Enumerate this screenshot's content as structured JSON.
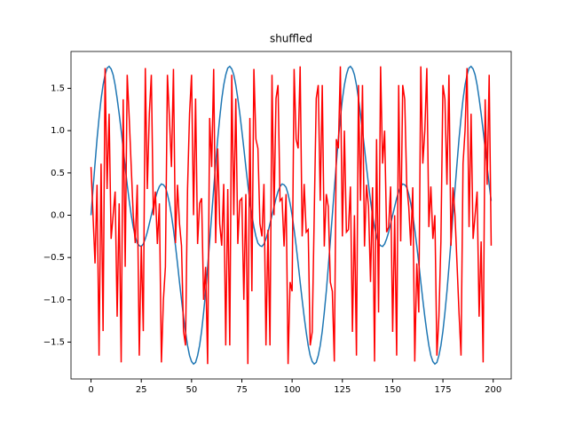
{
  "chart_data": {
    "type": "line",
    "title": "shuffled",
    "x": [
      0,
      1,
      2,
      3,
      4,
      5,
      6,
      7,
      8,
      9,
      10,
      11,
      12,
      13,
      14,
      15,
      16,
      17,
      18,
      19,
      20,
      21,
      22,
      23,
      24,
      25,
      26,
      27,
      28,
      29,
      30,
      31,
      32,
      33,
      34,
      35,
      36,
      37,
      38,
      39,
      40,
      41,
      42,
      43,
      44,
      45,
      46,
      47,
      48,
      49,
      50,
      51,
      52,
      53,
      54,
      55,
      56,
      57,
      58,
      59,
      60,
      61,
      62,
      63,
      64,
      65,
      66,
      67,
      68,
      69,
      70,
      71,
      72,
      73,
      74,
      75,
      76,
      77,
      78,
      79,
      80,
      81,
      82,
      83,
      84,
      85,
      86,
      87,
      88,
      89,
      90,
      91,
      92,
      93,
      94,
      95,
      96,
      97,
      98,
      99,
      100,
      101,
      102,
      103,
      104,
      105,
      106,
      107,
      108,
      109,
      110,
      111,
      112,
      113,
      114,
      115,
      116,
      117,
      118,
      119,
      120,
      121,
      122,
      123,
      124,
      125,
      126,
      127,
      128,
      129,
      130,
      131,
      132,
      133,
      134,
      135,
      136,
      137,
      138,
      139,
      140,
      141,
      142,
      143,
      144,
      145,
      146,
      147,
      148,
      149,
      150,
      151,
      152,
      153,
      154,
      155,
      156,
      157,
      158,
      159,
      160,
      161,
      162,
      163,
      164,
      165,
      166,
      167,
      168,
      169,
      170,
      171,
      172,
      173,
      174,
      175,
      176,
      177,
      178,
      179,
      180,
      181,
      182,
      183,
      184,
      185,
      186,
      187,
      188,
      189,
      190,
      191,
      192,
      193,
      194,
      195,
      196,
      197,
      198,
      199
    ],
    "series": [
      {
        "color": "#1f77b4",
        "values": [
          0,
          0.31,
          0.61,
          0.9,
          1.15,
          1.37,
          1.54,
          1.66,
          1.74,
          1.76,
          1.73,
          1.66,
          1.54,
          1.38,
          1.2,
          1,
          0.79,
          0.57,
          0.36,
          0.17,
          0,
          -0.14,
          -0.25,
          -0.33,
          -0.36,
          -0.37,
          -0.34,
          -0.28,
          -0.2,
          -0.1,
          0,
          0.1,
          0.2,
          0.28,
          0.34,
          0.37,
          0.36,
          0.33,
          0.25,
          0.14,
          0,
          -0.17,
          -0.36,
          -0.57,
          -0.79,
          -1,
          -1.2,
          -1.38,
          -1.54,
          -1.66,
          -1.73,
          -1.76,
          -1.74,
          -1.66,
          -1.54,
          -1.37,
          -1.15,
          -0.9,
          -0.61,
          -0.31,
          0,
          0.31,
          0.61,
          0.9,
          1.15,
          1.37,
          1.54,
          1.66,
          1.74,
          1.76,
          1.73,
          1.66,
          1.54,
          1.38,
          1.2,
          1,
          0.79,
          0.57,
          0.36,
          0.17,
          0,
          -0.14,
          -0.25,
          -0.33,
          -0.36,
          -0.37,
          -0.34,
          -0.28,
          -0.2,
          -0.1,
          0,
          0.1,
          0.2,
          0.28,
          0.34,
          0.37,
          0.36,
          0.33,
          0.25,
          0.14,
          0,
          -0.17,
          -0.36,
          -0.57,
          -0.79,
          -1,
          -1.2,
          -1.38,
          -1.54,
          -1.66,
          -1.73,
          -1.76,
          -1.74,
          -1.66,
          -1.54,
          -1.37,
          -1.15,
          -0.9,
          -0.61,
          -0.31,
          0,
          0.31,
          0.61,
          0.9,
          1.15,
          1.37,
          1.54,
          1.66,
          1.74,
          1.76,
          1.73,
          1.66,
          1.54,
          1.38,
          1.2,
          1,
          0.79,
          0.57,
          0.36,
          0.17,
          0,
          -0.14,
          -0.25,
          -0.33,
          -0.36,
          -0.37,
          -0.34,
          -0.28,
          -0.2,
          -0.1,
          0,
          0.1,
          0.2,
          0.28,
          0.34,
          0.37,
          0.36,
          0.33,
          0.25,
          0.14,
          0,
          -0.17,
          -0.36,
          -0.57,
          -0.79,
          -1,
          -1.2,
          -1.38,
          -1.54,
          -1.66,
          -1.73,
          -1.76,
          -1.74,
          -1.66,
          -1.54,
          -1.37,
          -1.15,
          -0.9,
          -0.61,
          -0.31,
          0,
          0.31,
          0.61,
          0.9,
          1.15,
          1.37,
          1.54,
          1.66,
          1.74,
          1.76,
          1.73,
          1.66,
          1.54,
          1.38,
          1.2,
          1,
          0.79,
          0.57,
          0.36,
          0.17
        ]
      },
      {
        "color": "#ff0000",
        "values": [
          0.57,
          0,
          -0.57,
          0.36,
          -1.66,
          0.61,
          -1.37,
          1.74,
          0.31,
          1.2,
          -0.28,
          0,
          0.28,
          -1.2,
          0.14,
          -1.74,
          1.37,
          -0.61,
          1.66,
          1.15,
          0.57,
          0,
          -0.33,
          0.36,
          -1.66,
          -0.36,
          -1.37,
          1.74,
          0.31,
          1.2,
          1.66,
          0,
          0.28,
          -0.34,
          0.14,
          -1.74,
          -1,
          -0.61,
          1.66,
          1.15,
          0.57,
          1.73,
          -0.33,
          0.36,
          -0.1,
          -0.36,
          -1.37,
          -1.54,
          0.31,
          1.2,
          1.66,
          0,
          1.38,
          -0.34,
          0.14,
          0.2,
          -1,
          -0.61,
          -1.76,
          1.15,
          0.57,
          1.73,
          -0.33,
          0.79,
          -0.1,
          -0.36,
          0.37,
          -1.54,
          0.31,
          -1.54,
          1.66,
          0,
          1.38,
          -0.34,
          0.17,
          0.2,
          -1,
          0.25,
          -1.76,
          1.15,
          -0.9,
          1.73,
          0.9,
          0.79,
          -0.1,
          -0.25,
          0.37,
          -1.54,
          -0.17,
          -1.54,
          1.66,
          0,
          1.38,
          1.54,
          0.17,
          0.2,
          -0.37,
          0.25,
          -1.76,
          -0.79,
          -0.9,
          1.73,
          0.9,
          0.79,
          1.76,
          -0.25,
          0.37,
          -0.2,
          -0.17,
          -1.54,
          -1.38,
          0,
          1.38,
          1.54,
          0.17,
          1.54,
          -0.37,
          0.25,
          0.1,
          -0.79,
          -0.9,
          -1.73,
          0.9,
          0.79,
          1.76,
          -0.25,
          1,
          -0.2,
          -0.17,
          0.34,
          -1.38,
          0,
          -1.66,
          1.54,
          0.17,
          1.54,
          -0.37,
          0.36,
          0.1,
          -0.79,
          0.33,
          -1.73,
          0.9,
          -1.15,
          1.76,
          0.61,
          1,
          -0.2,
          -0.14,
          0.34,
          -1.38,
          0,
          -1.66,
          1.54,
          -0.31,
          1.54,
          1.37,
          0.36,
          0.1,
          -0.36,
          0.33,
          -1.73,
          -0.57,
          -1.15,
          1.76,
          0.61,
          1,
          1.74,
          -0.14,
          0.34,
          -0.28,
          0,
          -1.66,
          -1.2,
          -0.31,
          1.54,
          1.37,
          0.36,
          1.66,
          -0.36,
          0.33,
          0,
          -0.57,
          -1.15,
          -1.66,
          0.61,
          1,
          1.74,
          -0.14,
          1.2,
          -0.28,
          0,
          0.28,
          -1.2,
          -0.31,
          -1.74,
          1.37,
          0.36,
          1.66,
          -0.36
        ]
      }
    ],
    "xlim": [
      -9.95,
      208.95
    ],
    "xticks": [
      0,
      25,
      50,
      75,
      100,
      125,
      150,
      175,
      200
    ],
    "ylim": [
      -1.936,
      1.936
    ],
    "yticks": [
      {
        "value": -1.5,
        "label": "−1.5"
      },
      {
        "value": -1,
        "label": "−1.0"
      },
      {
        "value": -0.5,
        "label": "−0.5"
      },
      {
        "value": 0,
        "label": "0.0"
      },
      {
        "value": 0.5,
        "label": "0.5"
      },
      {
        "value": 1,
        "label": "1.0"
      },
      {
        "value": 1.5,
        "label": "1.5"
      }
    ]
  }
}
